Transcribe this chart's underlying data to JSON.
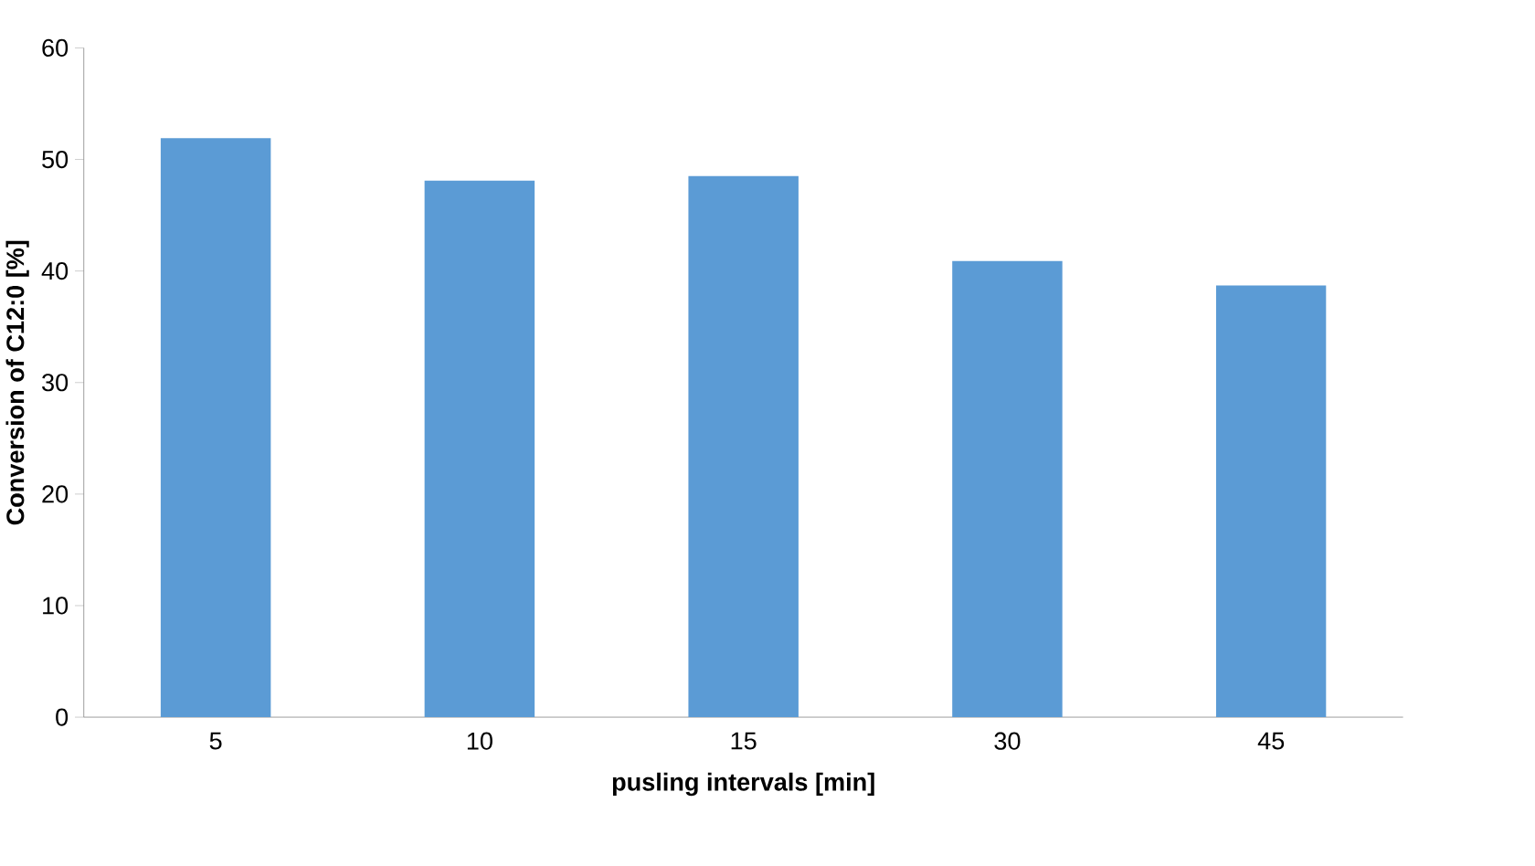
{
  "chart_data": {
    "type": "bar",
    "xlabel": "pusling intervals [min]",
    "ylabel": "Conversion of C12:0  [%]",
    "categories": [
      "5",
      "10",
      "15",
      "30",
      "45"
    ],
    "values": [
      51.9,
      48.1,
      48.5,
      40.9,
      38.7
    ],
    "color": "#5b9bd5",
    "ylim": [
      0,
      60
    ],
    "yticks": [
      0,
      10,
      20,
      30,
      40,
      50,
      60
    ],
    "grid": false
  }
}
